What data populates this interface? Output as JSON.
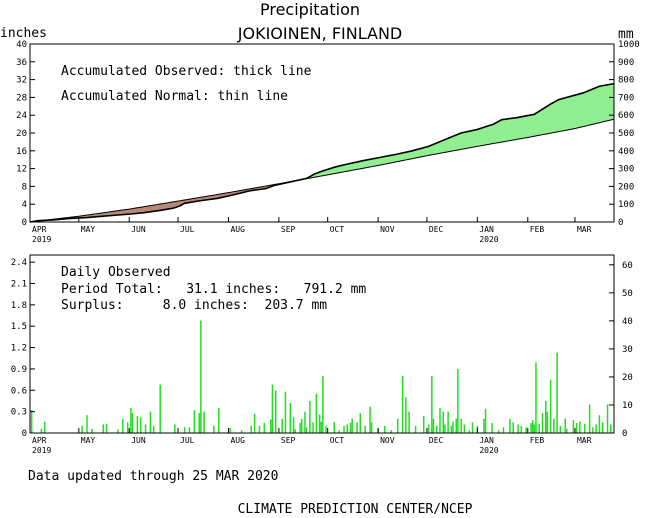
{
  "title": "Precipitation",
  "subtitle": "JOKIOINEN, FINLAND",
  "footer_updated": "Data updated through 25 MAR 2020",
  "footer_credit": "CLIMATE PREDICTION CENTER/NCEP",
  "colors": {
    "surplus": "#90ee90",
    "deficit": "#b8877a",
    "daily_bar": "#22dd22",
    "line": "#000000"
  },
  "chart_data": [
    {
      "type": "area",
      "title": "Precipitation",
      "subtitle": "JOKIOINEN, FINLAND",
      "ylabel_left": "inches",
      "ylabel_right": "mm",
      "legend_lines": [
        "Accumulated Observed: thick line",
        "Accumulated Normal: thin line"
      ],
      "legend_placement": "top-left",
      "ylim_left": [
        0,
        40
      ],
      "yticks_left": [
        "0",
        "4",
        "8",
        "12",
        "16",
        "20",
        "24",
        "28",
        "32",
        "36",
        "40"
      ],
      "ylim_right": [
        0,
        1000
      ],
      "yticks_right": [
        "0",
        "100",
        "200",
        "300",
        "400",
        "500",
        "600",
        "700",
        "800",
        "900",
        "1000"
      ],
      "x_months": [
        "APR",
        "MAY",
        "JUN",
        "JUL",
        "AUG",
        "SEP",
        "OCT",
        "NOV",
        "DEC",
        "JAN",
        "FEB",
        "MAR"
      ],
      "x_years": {
        "APR": "2019",
        "JAN": "2020"
      },
      "x_unit": "days since 1 Apr 2019",
      "observed": [
        [
          0,
          0.0
        ],
        [
          5,
          0.3
        ],
        [
          15,
          0.5
        ],
        [
          25,
          0.8
        ],
        [
          35,
          1.0
        ],
        [
          45,
          1.3
        ],
        [
          55,
          1.6
        ],
        [
          62,
          1.8
        ],
        [
          70,
          2.1
        ],
        [
          80,
          2.6
        ],
        [
          88,
          3.1
        ],
        [
          92,
          3.6
        ],
        [
          95,
          4.2
        ],
        [
          105,
          4.8
        ],
        [
          115,
          5.3
        ],
        [
          125,
          6.1
        ],
        [
          135,
          7.0
        ],
        [
          145,
          7.5
        ],
        [
          150,
          8.2
        ],
        [
          160,
          9.0
        ],
        [
          170,
          9.8
        ],
        [
          175,
          10.8
        ],
        [
          180,
          11.5
        ],
        [
          188,
          12.4
        ],
        [
          195,
          13.0
        ],
        [
          205,
          13.8
        ],
        [
          215,
          14.5
        ],
        [
          225,
          15.2
        ],
        [
          235,
          16.0
        ],
        [
          245,
          17.0
        ],
        [
          255,
          18.5
        ],
        [
          265,
          20.0
        ],
        [
          275,
          20.8
        ],
        [
          285,
          22.0
        ],
        [
          290,
          23.0
        ],
        [
          300,
          23.5
        ],
        [
          310,
          24.2
        ],
        [
          320,
          26.5
        ],
        [
          325,
          27.5
        ],
        [
          340,
          29.0
        ],
        [
          350,
          30.5
        ],
        [
          359,
          31.1
        ]
      ],
      "normal": [
        [
          0,
          0.0
        ],
        [
          30,
          1.3
        ],
        [
          61,
          2.9
        ],
        [
          91,
          4.7
        ],
        [
          122,
          6.6
        ],
        [
          153,
          8.6
        ],
        [
          183,
          10.6
        ],
        [
          214,
          12.7
        ],
        [
          244,
          14.9
        ],
        [
          275,
          17.0
        ],
        [
          306,
          19.0
        ],
        [
          335,
          21.0
        ],
        [
          359,
          23.1
        ]
      ]
    },
    {
      "type": "bar",
      "title": "Daily Observed",
      "period_total_line": "Period Total:   31.1 inches:   791.2 mm",
      "surplus_line": "Surplus:     8.0 inches:  203.7 mm",
      "legend_placement": "top-left",
      "ylim_left": [
        0,
        2.5
      ],
      "yticks_left": [
        "0",
        "0.3",
        "0.6",
        "0.9",
        "1.2",
        "1.5",
        "1.8",
        "2.1",
        "2.4"
      ],
      "ylim_right": [
        0,
        63.5
      ],
      "yticks_right": [
        "0",
        "10",
        "20",
        "30",
        "40",
        "50",
        "60"
      ],
      "x_unit": "days since 1 Apr 2019",
      "daily": [
        [
          1,
          0.32
        ],
        [
          7,
          0.06
        ],
        [
          9,
          0.16
        ],
        [
          32,
          0.1
        ],
        [
          35,
          0.25
        ],
        [
          38,
          0.06
        ],
        [
          45,
          0.12
        ],
        [
          47,
          0.13
        ],
        [
          54,
          0.05
        ],
        [
          57,
          0.2
        ],
        [
          60,
          0.15
        ],
        [
          62,
          0.35
        ],
        [
          63,
          0.28
        ],
        [
          66,
          0.24
        ],
        [
          68,
          0.22
        ],
        [
          71,
          0.12
        ],
        [
          74,
          0.3
        ],
        [
          76,
          0.1
        ],
        [
          80,
          0.68
        ],
        [
          89,
          0.12
        ],
        [
          95,
          0.08
        ],
        [
          98,
          0.08
        ],
        [
          101,
          0.32
        ],
        [
          104,
          0.28
        ],
        [
          105,
          1.58
        ],
        [
          107,
          0.3
        ],
        [
          113,
          0.1
        ],
        [
          116,
          0.35
        ],
        [
          123,
          0.07
        ],
        [
          130,
          0.04
        ],
        [
          136,
          0.1
        ],
        [
          138,
          0.27
        ],
        [
          141,
          0.1
        ],
        [
          144,
          0.14
        ],
        [
          148,
          0.19
        ],
        [
          149,
          0.68
        ],
        [
          151,
          0.6
        ],
        [
          155,
          0.2
        ],
        [
          157,
          0.58
        ],
        [
          160,
          0.42
        ],
        [
          162,
          0.22
        ],
        [
          163,
          0.05
        ],
        [
          166,
          0.14
        ],
        [
          167,
          0.2
        ],
        [
          169,
          0.3
        ],
        [
          170,
          0.08
        ],
        [
          172,
          0.45
        ],
        [
          174,
          0.15
        ],
        [
          176,
          0.55
        ],
        [
          178,
          0.26
        ],
        [
          179,
          0.16
        ],
        [
          180,
          0.8
        ],
        [
          182,
          0.1
        ],
        [
          187,
          0.15
        ],
        [
          190,
          0.04
        ],
        [
          193,
          0.1
        ],
        [
          195,
          0.12
        ],
        [
          197,
          0.14
        ],
        [
          198,
          0.2
        ],
        [
          201,
          0.15
        ],
        [
          203,
          0.28
        ],
        [
          206,
          0.1
        ],
        [
          209,
          0.37
        ],
        [
          210,
          0.15
        ],
        [
          214,
          0.06
        ],
        [
          218,
          0.1
        ],
        [
          222,
          0.04
        ],
        [
          226,
          0.2
        ],
        [
          229,
          0.8
        ],
        [
          231,
          0.5
        ],
        [
          233,
          0.3
        ],
        [
          237,
          0.1
        ],
        [
          242,
          0.24
        ],
        [
          245,
          0.12
        ],
        [
          247,
          0.8
        ],
        [
          248,
          0.2
        ],
        [
          250,
          0.1
        ],
        [
          252,
          0.35
        ],
        [
          254,
          0.3
        ],
        [
          255,
          0.12
        ],
        [
          257,
          0.3
        ],
        [
          259,
          0.1
        ],
        [
          260,
          0.16
        ],
        [
          262,
          0.2
        ],
        [
          263,
          0.9
        ],
        [
          265,
          0.2
        ],
        [
          267,
          0.12
        ],
        [
          270,
          0.04
        ],
        [
          272,
          0.15
        ],
        [
          275,
          0.1
        ],
        [
          279,
          0.2
        ],
        [
          280,
          0.34
        ],
        [
          284,
          0.14
        ],
        [
          288,
          0.04
        ],
        [
          291,
          0.08
        ],
        [
          295,
          0.2
        ],
        [
          297,
          0.15
        ],
        [
          300,
          0.12
        ],
        [
          302,
          0.1
        ],
        [
          305,
          0.08
        ],
        [
          308,
          0.14
        ],
        [
          309,
          0.18
        ],
        [
          310,
          0.12
        ],
        [
          311,
          0.99
        ],
        [
          313,
          0.13
        ],
        [
          315,
          0.28
        ],
        [
          317,
          0.45
        ],
        [
          318,
          0.3
        ],
        [
          320,
          0.75
        ],
        [
          322,
          0.2
        ],
        [
          324,
          1.13
        ],
        [
          326,
          0.1
        ],
        [
          329,
          0.2
        ],
        [
          330,
          0.06
        ],
        [
          334,
          0.18
        ],
        [
          336,
          0.14
        ],
        [
          338,
          0.16
        ],
        [
          341,
          0.13
        ],
        [
          344,
          0.4
        ],
        [
          346,
          0.08
        ],
        [
          348,
          0.12
        ],
        [
          350,
          0.25
        ],
        [
          352,
          0.15
        ],
        [
          355,
          0.4
        ],
        [
          357,
          0.12
        ]
      ]
    }
  ]
}
